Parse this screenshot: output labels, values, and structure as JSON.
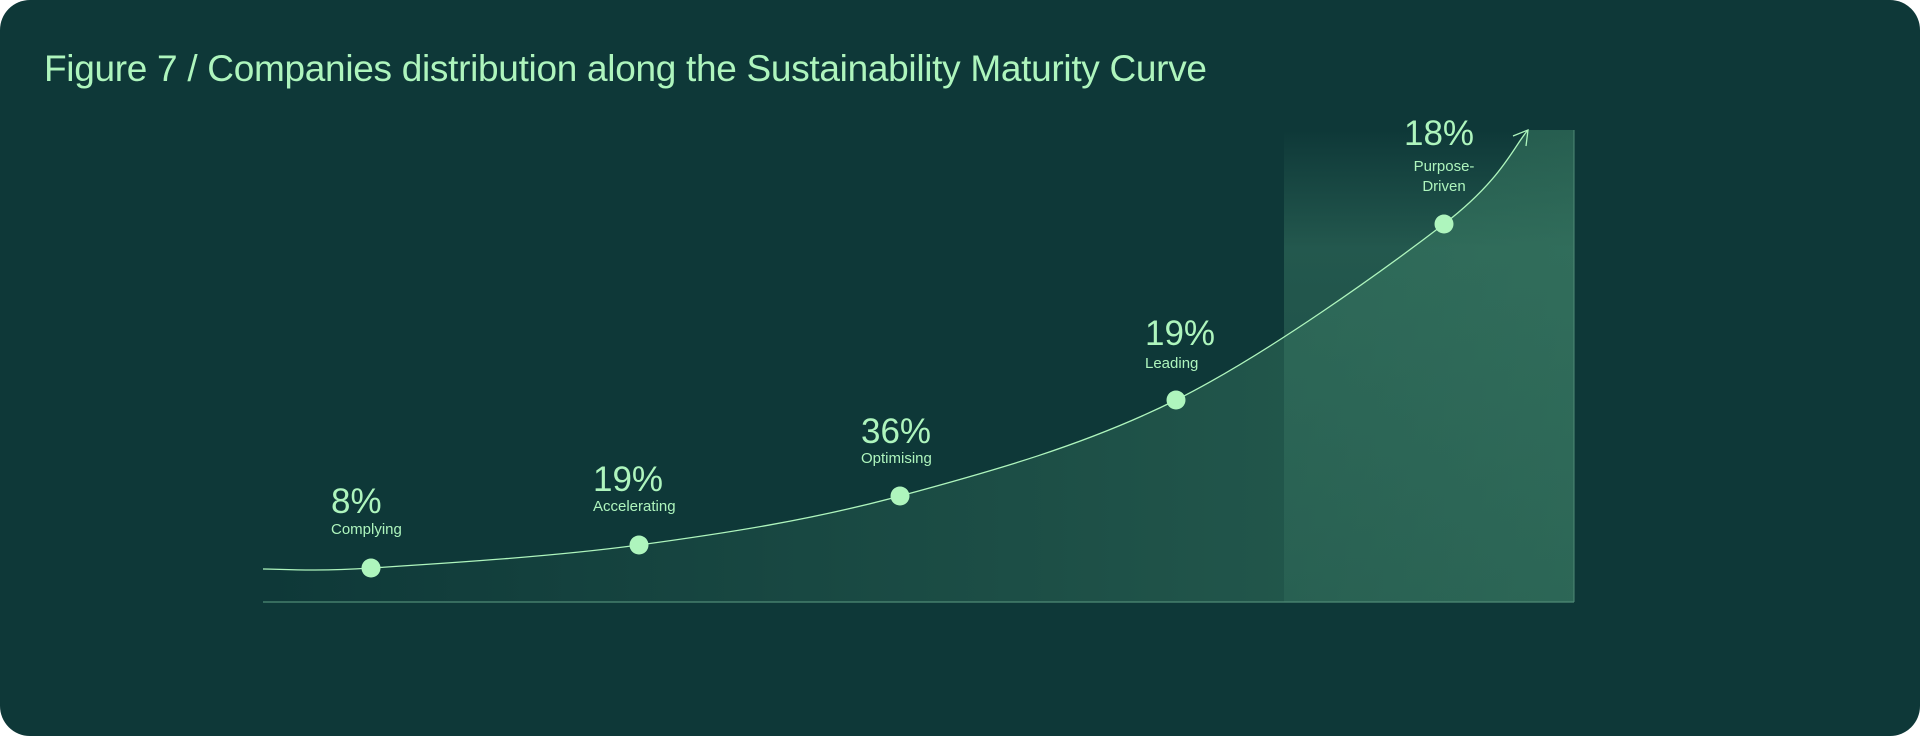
{
  "chart_data": {
    "type": "line",
    "title": "Figure 7 / Companies distribution along the Sustainability Maturity Curve",
    "categories": [
      "Complying",
      "Accelerating",
      "Optimising",
      "Leading",
      "Purpose-Driven"
    ],
    "category_lines": [
      [
        "Complying"
      ],
      [
        "Accelerating"
      ],
      [
        "Optimising"
      ],
      [
        "Leading"
      ],
      [
        "Purpose-",
        "Driven"
      ]
    ],
    "values": [
      8,
      19,
      36,
      19,
      18
    ],
    "value_labels": [
      "8%",
      "19%",
      "36%",
      "19%",
      "18%"
    ],
    "grid": false,
    "legend": "none",
    "colors": {
      "background": "#0e3838",
      "accent": "#aef5bd",
      "fill": "#2f6b58"
    }
  }
}
